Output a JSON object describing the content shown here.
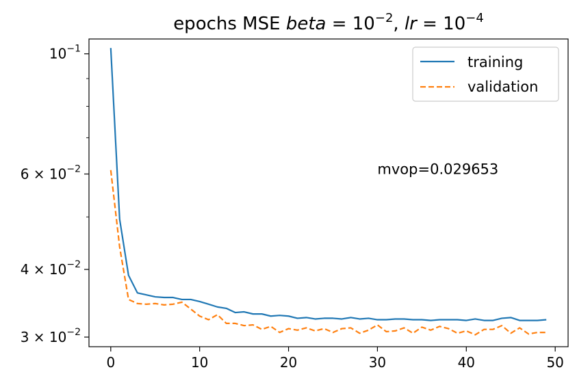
{
  "chart_data": {
    "type": "line",
    "title": "epochs MSE beta = 10^-2, lr = 10^-4",
    "title_parts": {
      "prefix": "epochs MSE ",
      "var1": "beta",
      "eq1": " = 10",
      "exp1": "−2",
      "sep": ", ",
      "var2": "lr",
      "eq2": " = 10",
      "exp2": "−4"
    },
    "xlabel": "",
    "ylabel": "",
    "xscale": "linear",
    "yscale": "log",
    "xlim": [
      -2.45,
      51.45
    ],
    "ylim": [
      0.0288,
      0.1065
    ],
    "xticks": [
      0,
      10,
      20,
      30,
      40,
      50
    ],
    "xtick_labels": [
      "0",
      "10",
      "20",
      "30",
      "40",
      "50"
    ],
    "yticks": [
      {
        "value": 0.1,
        "mant": "",
        "base": "10",
        "exp": "−1"
      },
      {
        "value": 0.06,
        "mant": "6 × ",
        "base": "10",
        "exp": "−2"
      },
      {
        "value": 0.04,
        "mant": "4 × ",
        "base": "10",
        "exp": "−2"
      },
      {
        "value": 0.03,
        "mant": "3 × ",
        "base": "10",
        "exp": "−2"
      }
    ],
    "minor_yticks": [
      0.09,
      0.08,
      0.07,
      0.05
    ],
    "grid": false,
    "legend_position": "top-right",
    "x": [
      0,
      1,
      2,
      3,
      4,
      5,
      6,
      7,
      8,
      9,
      10,
      11,
      12,
      13,
      14,
      15,
      16,
      17,
      18,
      19,
      20,
      21,
      22,
      23,
      24,
      25,
      26,
      27,
      28,
      29,
      30,
      31,
      32,
      33,
      34,
      35,
      36,
      37,
      38,
      39,
      40,
      41,
      42,
      43,
      44,
      45,
      46,
      47,
      48,
      49
    ],
    "series": [
      {
        "name": "training",
        "color": "#1f77b4",
        "dash": "solid",
        "values": [
          0.1025,
          0.0495,
          0.039,
          0.0362,
          0.0359,
          0.0356,
          0.0355,
          0.0355,
          0.0352,
          0.0352,
          0.0349,
          0.0345,
          0.0341,
          0.0339,
          0.0333,
          0.0334,
          0.0331,
          0.0331,
          0.0328,
          0.0329,
          0.0328,
          0.0325,
          0.0326,
          0.0324,
          0.0325,
          0.0325,
          0.0324,
          0.0326,
          0.0324,
          0.0325,
          0.0323,
          0.0323,
          0.0324,
          0.0324,
          0.0323,
          0.0323,
          0.0322,
          0.0323,
          0.0323,
          0.0323,
          0.0322,
          0.0324,
          0.0322,
          0.0322,
          0.0325,
          0.0326,
          0.0322,
          0.0322,
          0.0322,
          0.0323
        ]
      },
      {
        "name": "validation",
        "color": "#ff7f0e",
        "dash": "dashed",
        "values": [
          0.061,
          0.044,
          0.0352,
          0.0346,
          0.0345,
          0.0346,
          0.0344,
          0.0345,
          0.0348,
          0.0338,
          0.0328,
          0.0323,
          0.033,
          0.0318,
          0.0318,
          0.0315,
          0.0316,
          0.031,
          0.0314,
          0.0306,
          0.0311,
          0.0309,
          0.0312,
          0.0308,
          0.0311,
          0.0306,
          0.0311,
          0.0312,
          0.0305,
          0.0309,
          0.0316,
          0.0307,
          0.0308,
          0.0312,
          0.0305,
          0.0313,
          0.0309,
          0.0314,
          0.0311,
          0.0305,
          0.0308,
          0.0303,
          0.031,
          0.031,
          0.0315,
          0.0305,
          0.0312,
          0.0304,
          0.0306,
          0.0306
        ]
      }
    ],
    "annotation": {
      "text": "mvop=0.029653",
      "x": 30,
      "y": 0.06
    }
  }
}
